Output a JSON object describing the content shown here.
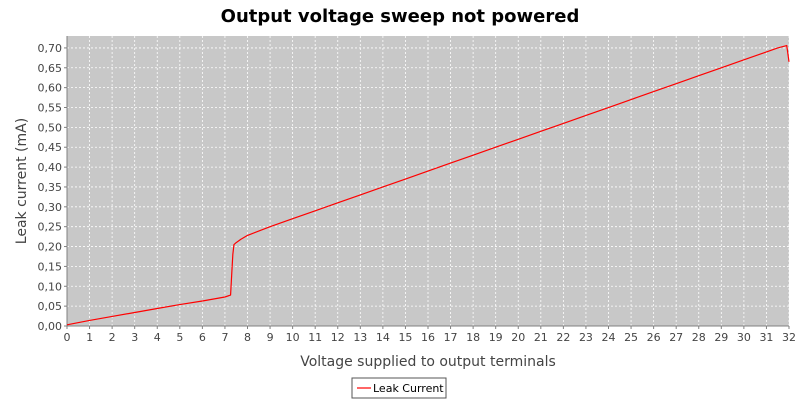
{
  "chart_data": {
    "type": "line",
    "title": "Output voltage sweep not powered",
    "xlabel": "Voltage supplied to output terminals",
    "ylabel": "Leak current (mA)",
    "xlim": [
      0,
      32
    ],
    "ylim": [
      0,
      0.73
    ],
    "grid": true,
    "legend_position": "bottom",
    "plot_background": "#c8c8c8",
    "gridline_color": "#ffffff",
    "x_ticks": [
      "0",
      "1",
      "2",
      "3",
      "4",
      "5",
      "6",
      "7",
      "8",
      "9",
      "10",
      "11",
      "12",
      "13",
      "14",
      "15",
      "16",
      "17",
      "18",
      "19",
      "20",
      "21",
      "22",
      "23",
      "24",
      "25",
      "26",
      "27",
      "28",
      "29",
      "30",
      "31",
      "32"
    ],
    "y_ticks": [
      "0,00",
      "0,05",
      "0,10",
      "0,15",
      "0,20",
      "0,25",
      "0,30",
      "0,35",
      "0,40",
      "0,45",
      "0,50",
      "0,55",
      "0,60",
      "0,65",
      "0,70"
    ],
    "series": [
      {
        "name": "Leak Current",
        "color": "#ff0000",
        "x": [
          0,
          1,
          2,
          3,
          4,
          5,
          6,
          7,
          7.25,
          7.3,
          7.35,
          7.4,
          7.5,
          7.7,
          8,
          9,
          10,
          11,
          12,
          13,
          14,
          15,
          16,
          17,
          18,
          19,
          20,
          21,
          22,
          23,
          24,
          25,
          26,
          27,
          28,
          29,
          30,
          31,
          31.5,
          31.9,
          32
        ],
        "y": [
          0.003,
          0.014,
          0.024,
          0.034,
          0.044,
          0.054,
          0.063,
          0.073,
          0.078,
          0.13,
          0.18,
          0.205,
          0.21,
          0.218,
          0.228,
          0.25,
          0.27,
          0.29,
          0.31,
          0.33,
          0.35,
          0.37,
          0.39,
          0.41,
          0.43,
          0.45,
          0.47,
          0.49,
          0.51,
          0.53,
          0.55,
          0.57,
          0.59,
          0.61,
          0.63,
          0.65,
          0.67,
          0.69,
          0.7,
          0.706,
          0.665
        ]
      }
    ]
  }
}
